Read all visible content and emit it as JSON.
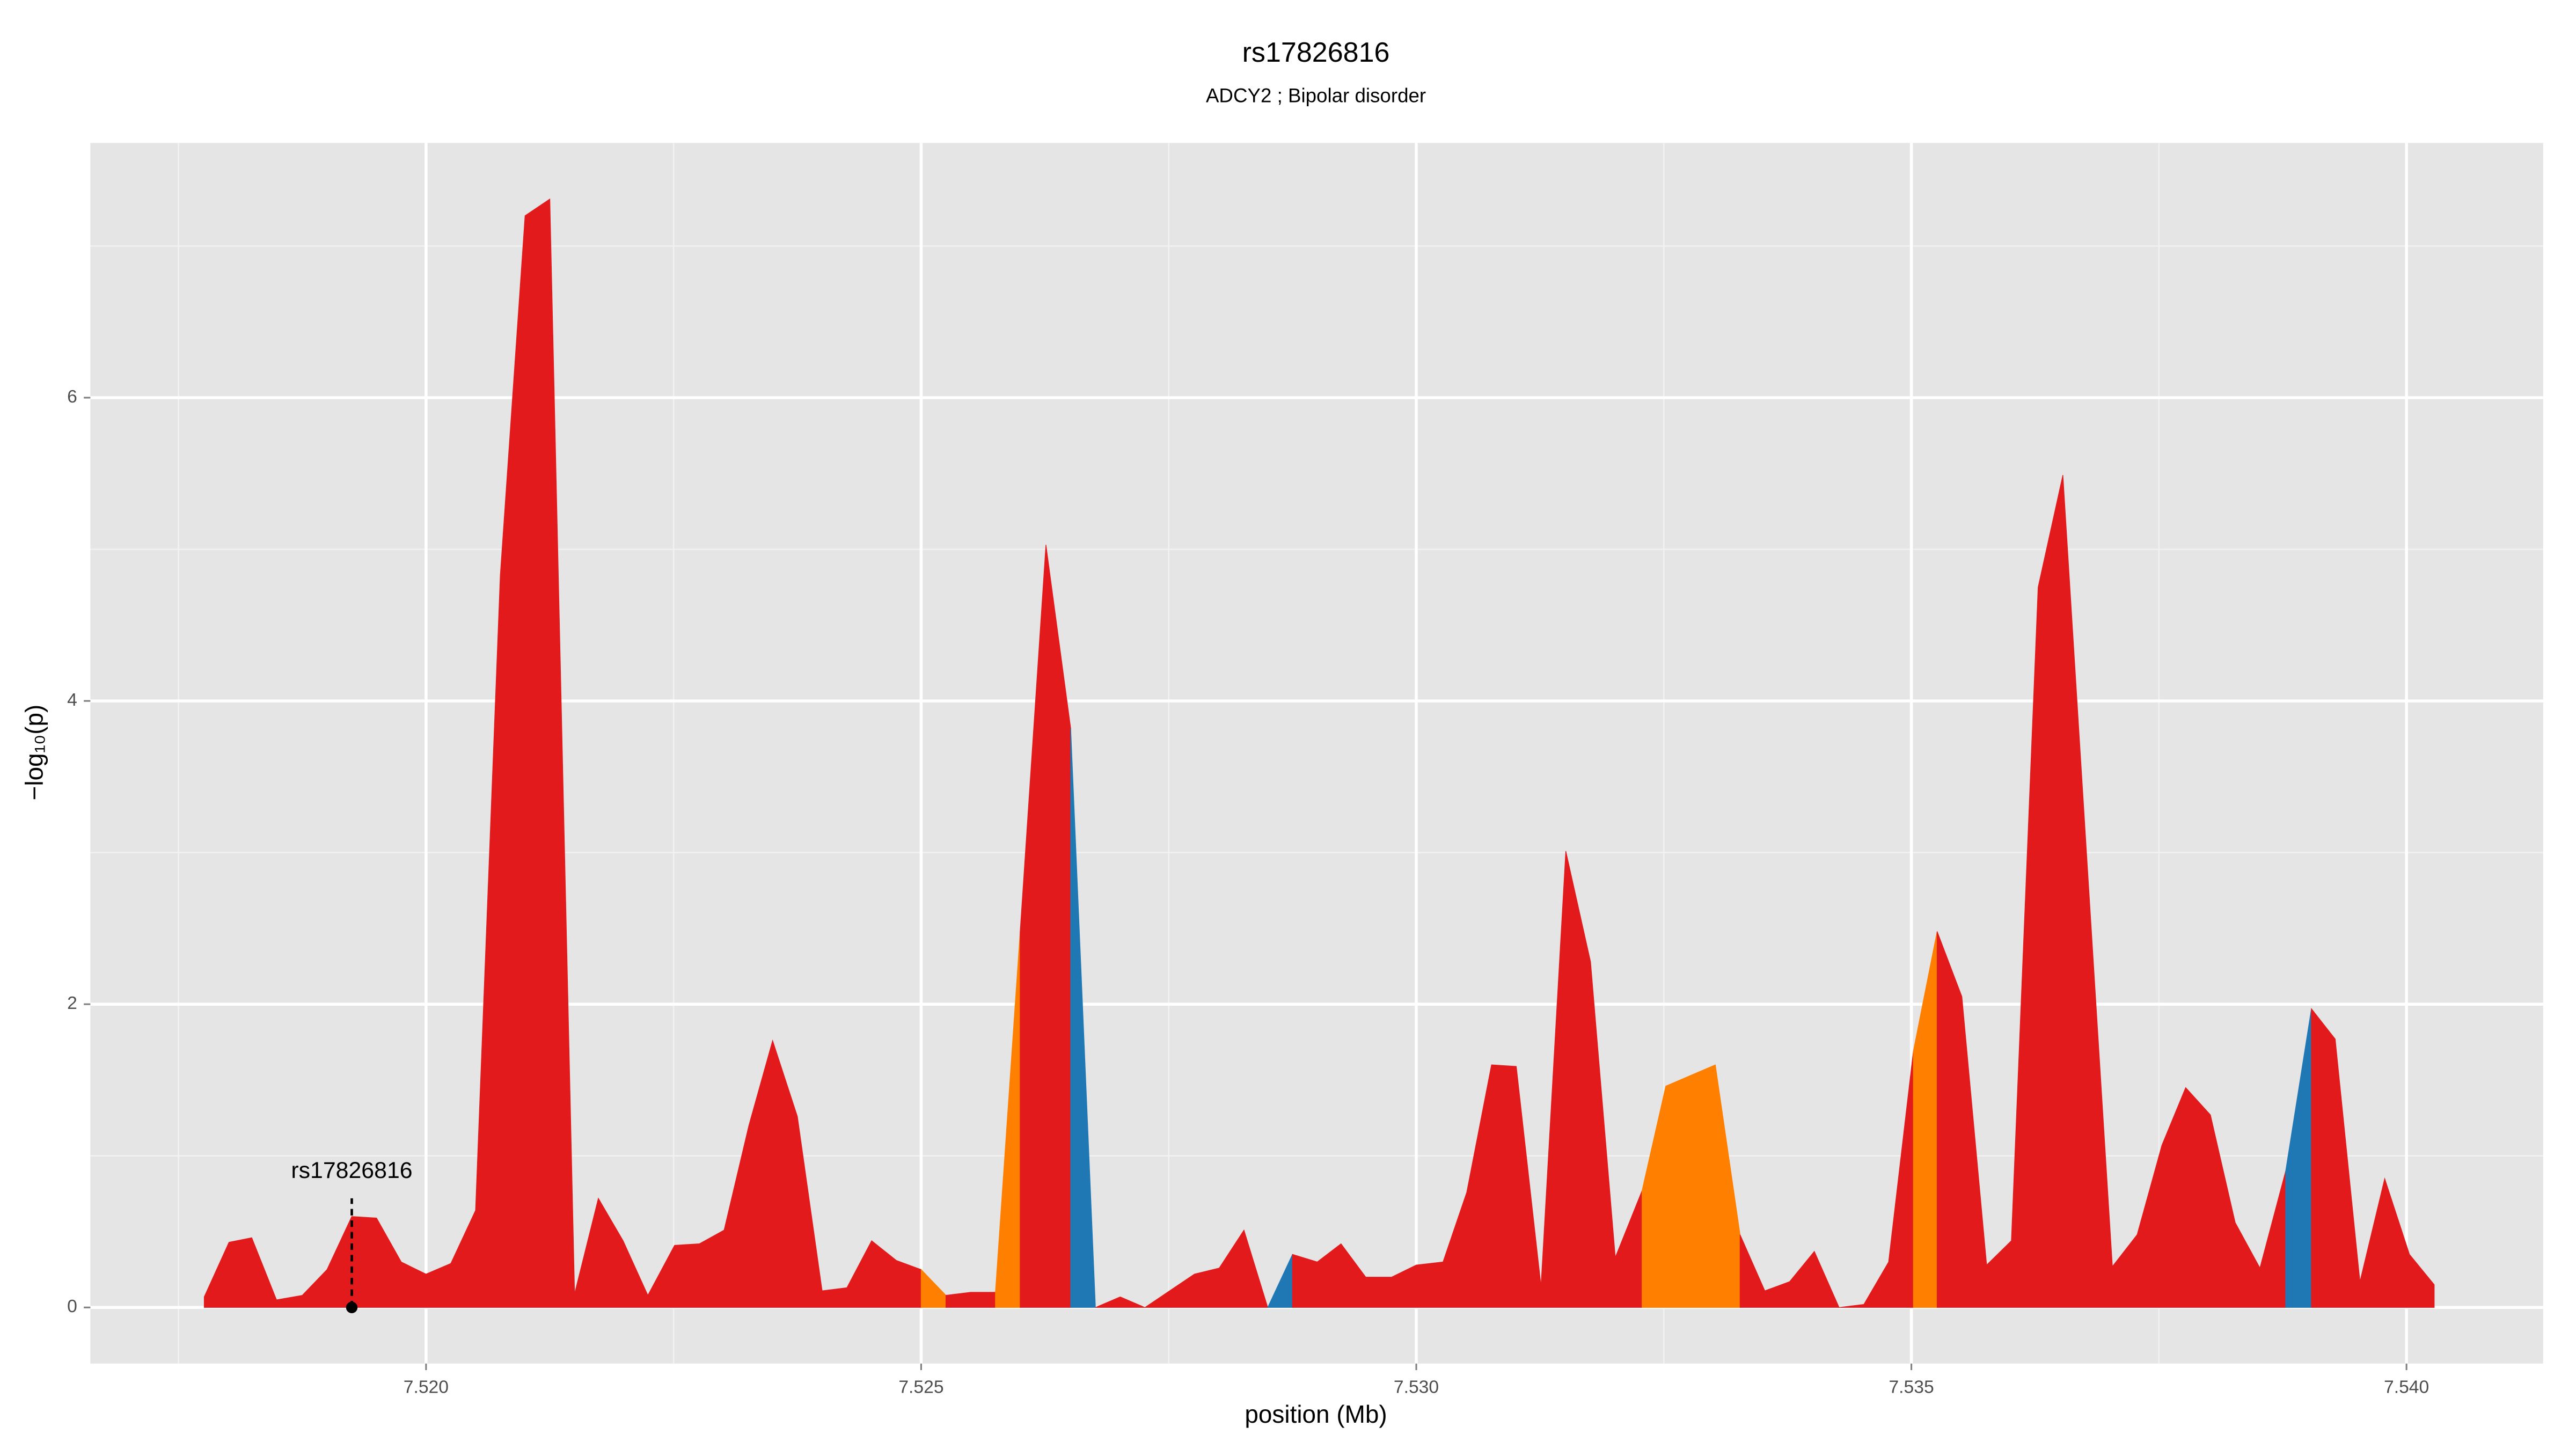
{
  "chart_data": {
    "type": "area",
    "title": "rs17826816",
    "subtitle": "ADCY2 ; Bipolar disorder",
    "x_label": "position (Mb)",
    "y_label": "−log₁₀(p)",
    "xlim": [
      7.51661,
      7.54138
    ],
    "ylim": [
      -0.37,
      7.68
    ],
    "xticks": [
      {
        "value": 7.52,
        "label": "7.520"
      },
      {
        "value": 7.525,
        "label": "7.525"
      },
      {
        "value": 7.53,
        "label": "7.530"
      },
      {
        "value": 7.535,
        "label": "7.535"
      },
      {
        "value": 7.54,
        "label": "7.540"
      }
    ],
    "yticks": [
      0,
      2,
      4,
      6
    ],
    "x_minor_breaks": [
      7.5175,
      7.5225,
      7.5275,
      7.5325,
      7.5375
    ],
    "y_minor_breaks": [
      1,
      3,
      5,
      7
    ],
    "grid": true,
    "annotation": {
      "label": "rs17826816",
      "x": 7.51925,
      "y": 0.72
    },
    "series": [
      {
        "color": "#e31a1c",
        "x": [
          7.51776,
          7.51801,
          7.51824,
          7.51849,
          7.51875,
          7.519,
          7.51925,
          7.5195,
          7.51975,
          7.52,
          7.52025,
          7.5205,
          7.52075,
          7.521,
          7.52125,
          7.5215,
          7.52174,
          7.52199,
          7.52224,
          7.52251,
          7.52276,
          7.52301,
          7.52326,
          7.5235,
          7.52375,
          7.524,
          7.52425,
          7.5245,
          7.52475,
          7.525
        ],
        "values": [
          0.07,
          0.43,
          0.46,
          0.05,
          0.08,
          0.25,
          0.6,
          0.59,
          0.3,
          0.22,
          0.29,
          0.64,
          4.83,
          7.2,
          7.31,
          0.09,
          0.72,
          0.44,
          0.08,
          0.41,
          0.42,
          0.51,
          1.2,
          1.76,
          1.26,
          0.11,
          0.13,
          0.44,
          0.31,
          0.25
        ]
      },
      {
        "color": "#ff7f00",
        "x": [
          7.525,
          7.52525
        ],
        "values": [
          0.25,
          0.08
        ]
      },
      {
        "color": "#e31a1c",
        "x": [
          7.52525,
          7.5255,
          7.52575
        ],
        "values": [
          0.08,
          0.1,
          0.1
        ]
      },
      {
        "color": "#ff7f00",
        "x": [
          7.52575,
          7.526
        ],
        "values": [
          0.1,
          2.48
        ]
      },
      {
        "color": "#e31a1c",
        "x": [
          7.526,
          7.52626,
          7.52651
        ],
        "values": [
          2.48,
          5.03,
          3.82
        ]
      },
      {
        "color": "#1f78b4",
        "x": [
          7.52651,
          7.52676
        ],
        "values": [
          3.82,
          0
        ]
      },
      {
        "color": "#e31a1c",
        "x": [
          7.52676,
          7.52701,
          7.52726,
          7.52751,
          7.52776,
          7.52801,
          7.52826,
          7.5285
        ],
        "values": [
          0,
          0.07,
          0,
          0.11,
          0.22,
          0.26,
          0.51,
          0
        ]
      },
      {
        "color": "#1f78b4",
        "x": [
          7.5285,
          7.52875
        ],
        "values": [
          0,
          0.35
        ]
      },
      {
        "color": "#e31a1c",
        "x": [
          7.52875,
          7.529,
          7.52924,
          7.52949,
          7.52975,
          7.53,
          7.53027,
          7.53051,
          7.53076,
          7.53101,
          7.53126,
          7.53151,
          7.53176,
          7.53201,
          7.53228
        ],
        "values": [
          0.35,
          0.3,
          0.42,
          0.2,
          0.2,
          0.28,
          0.3,
          0.76,
          1.6,
          1.59,
          0.14,
          3.01,
          2.28,
          0.33,
          0.77
        ]
      },
      {
        "color": "#ff7f00",
        "x": [
          7.53228,
          7.53252,
          7.53277,
          7.53302,
          7.53327
        ],
        "values": [
          0.77,
          1.46,
          1.53,
          1.6,
          0.48
        ]
      },
      {
        "color": "#e31a1c",
        "x": [
          7.53327,
          7.53352,
          7.53377,
          7.53402,
          7.53427,
          7.53452,
          7.53477,
          7.53502
        ],
        "values": [
          0.48,
          0.11,
          0.17,
          0.37,
          0,
          0.02,
          0.3,
          1.69
        ]
      },
      {
        "color": "#ff7f00",
        "x": [
          7.53502,
          7.53526
        ],
        "values": [
          1.69,
          2.48
        ]
      },
      {
        "color": "#e31a1c",
        "x": [
          7.53526,
          7.53551,
          7.53576,
          7.53601,
          7.53628,
          7.53653,
          7.53678,
          7.53703,
          7.53728,
          7.53753,
          7.53777,
          7.53802,
          7.53827,
          7.53852,
          7.53878
        ],
        "values": [
          2.48,
          2.05,
          0.28,
          0.44,
          4.75,
          5.49,
          2.88,
          0.27,
          0.48,
          1.07,
          1.45,
          1.27,
          0.56,
          0.26,
          0.9
        ]
      },
      {
        "color": "#1f78b4",
        "x": [
          7.53878,
          7.53904
        ],
        "values": [
          0.9,
          1.97
        ]
      },
      {
        "color": "#e31a1c",
        "x": [
          7.53904,
          7.53928,
          7.53953,
          7.53978,
          7.54003,
          7.54028
        ],
        "values": [
          1.97,
          1.77,
          0.17,
          0.85,
          0.35,
          0.15
        ]
      }
    ]
  }
}
